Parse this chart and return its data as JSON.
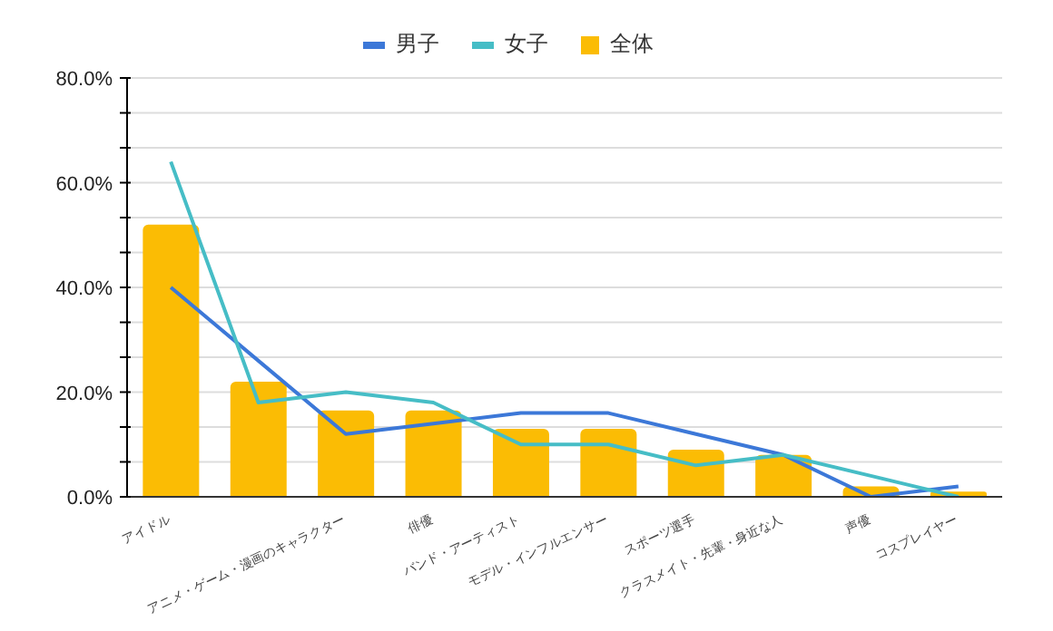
{
  "chart_data": {
    "type": "bar",
    "categories": [
      "アイドル",
      null,
      "アニメ・ゲーム・漫画のキャラクター",
      "俳優",
      "バンド・アーティスト",
      "モデル・インフルエンサー",
      "スポーツ選手",
      "クラスメイト・先輩・身近な人",
      "声優",
      "コスプレイヤー"
    ],
    "series": [
      {
        "name": "男子",
        "type": "line",
        "color": "#3c78d8",
        "values": [
          40,
          26,
          12,
          14,
          16,
          16,
          12,
          8,
          0,
          2
        ]
      },
      {
        "name": "女子",
        "type": "line",
        "color": "#46bdc6",
        "values": [
          64,
          18,
          20,
          18,
          10,
          10,
          6,
          8,
          4,
          0
        ]
      },
      {
        "name": "全体",
        "color": "#fbbc04",
        "values": [
          52,
          22,
          16.5,
          16.5,
          13,
          13,
          9,
          8,
          2,
          1
        ]
      }
    ],
    "ylim": [
      0,
      80
    ],
    "yticks": [
      {
        "value": 0,
        "label": "0.0%"
      },
      {
        "value": 6.67,
        "label": null
      },
      {
        "value": 13.33,
        "label": null
      },
      {
        "value": 20,
        "label": "20.0%"
      },
      {
        "value": 26.67,
        "label": null
      },
      {
        "value": 33.33,
        "label": null
      },
      {
        "value": 40,
        "label": "40.0%"
      },
      {
        "value": 46.67,
        "label": null
      },
      {
        "value": 53.33,
        "label": null
      },
      {
        "value": 60,
        "label": "60.0%"
      },
      {
        "value": 66.67,
        "label": null
      },
      {
        "value": 73.33,
        "label": null
      },
      {
        "value": 80,
        "label": "80.0%"
      }
    ],
    "grid": "y",
    "legend": "top",
    "marker": "none"
  }
}
